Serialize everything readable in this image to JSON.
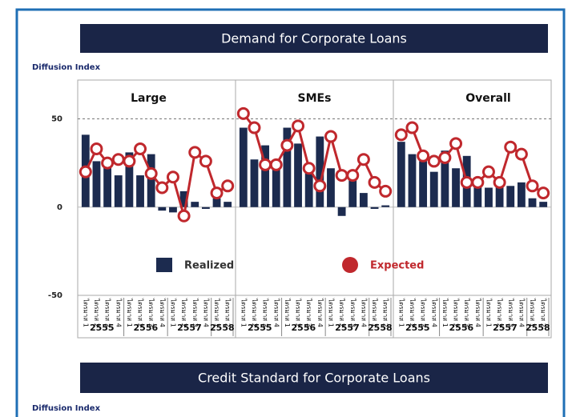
{
  "chart_data": {
    "type": "bar",
    "title": "Demand for Corporate Loans",
    "y_label": "Diffusion Index",
    "next_title": "Credit Standard for Corporate Loans",
    "next_y_label": "Diffusion Index",
    "ylim": [
      -50,
      72
    ],
    "yticks": [
      50,
      0,
      -50
    ],
    "panels": [
      {
        "title": "Large",
        "years": [
          {
            "label": "2555",
            "quarters": [
              "ไตรมาส 1",
              "ไตรมาส 2",
              "ไตรมาส 3",
              "ไตรมาส 4"
            ]
          },
          {
            "label": "2556",
            "quarters": [
              "ไตรมาส 1",
              "ไตรมาส 2",
              "ไตรมาส 3",
              "ไตรมาส 4"
            ]
          },
          {
            "label": "2557",
            "quarters": [
              "ไตรมาส 1",
              "ไตรมาส 2",
              "ไตรมาส 3",
              "ไตรมาส 4"
            ]
          },
          {
            "label": "2558",
            "quarters": [
              "ไตรมาส 1",
              "ไตรมาส 2"
            ]
          }
        ]
      },
      {
        "title": "SMEs",
        "years": [
          {
            "label": "2555",
            "quarters": [
              "ไตรมาส 1",
              "ไตรมาส 2",
              "ไตรมาส 3",
              "ไตรมาส 4"
            ]
          },
          {
            "label": "2556",
            "quarters": [
              "ไตรมาส 1",
              "ไตรมาส 2",
              "ไตรมาส 3",
              "ไตรมาส 4"
            ]
          },
          {
            "label": "2557",
            "quarters": [
              "ไตรมาส 1",
              "ไตรมาส 2",
              "ไตรมาส 3",
              "ไตรมาส 4"
            ]
          },
          {
            "label": "2558",
            "quarters": [
              "ไตรมาส 1",
              "ไตรมาส 2"
            ]
          }
        ]
      },
      {
        "title": "Overall",
        "years": [
          {
            "label": "2555",
            "quarters": [
              "ไตรมาส 1",
              "ไตรมาส 2",
              "ไตรมาส 3",
              "ไตรมาส 4"
            ]
          },
          {
            "label": "2556",
            "quarters": [
              "ไตรมาส 1",
              "ไตรมาส 2",
              "ไตรมาส 3",
              "ไตรมาส 4"
            ]
          },
          {
            "label": "2557",
            "quarters": [
              "ไตรมาส 1",
              "ไตรมาส 2",
              "ไตรมาส 3",
              "ไตรมาส 4"
            ]
          },
          {
            "label": "2558",
            "quarters": [
              "ไตรมาส 1",
              "ไตรมาส 2"
            ]
          }
        ]
      }
    ],
    "series": [
      {
        "name": "Realized",
        "type": "bar",
        "color": "#1c2b4f",
        "values": [
          41,
          26,
          24,
          18,
          31,
          18,
          30,
          -2,
          -3,
          9,
          3,
          -1,
          5,
          3,
          45,
          27,
          35,
          24,
          45,
          36,
          20,
          40,
          22,
          -5,
          19,
          8,
          -1,
          1,
          37,
          30,
          26,
          20,
          32,
          22,
          29,
          12,
          11,
          16,
          12,
          14,
          5,
          3
        ]
      },
      {
        "name": "Expected",
        "type": "line",
        "color": "#c0282d",
        "values": [
          20,
          33,
          25,
          27,
          26,
          33,
          19,
          11,
          17,
          -5,
          31,
          26,
          8,
          12,
          53,
          45,
          24,
          24,
          35,
          46,
          22,
          12,
          40,
          18,
          18,
          27,
          14,
          9,
          41,
          45,
          29,
          26,
          28,
          36,
          14,
          14,
          20,
          14,
          34,
          30,
          12,
          8
        ]
      }
    ]
  }
}
